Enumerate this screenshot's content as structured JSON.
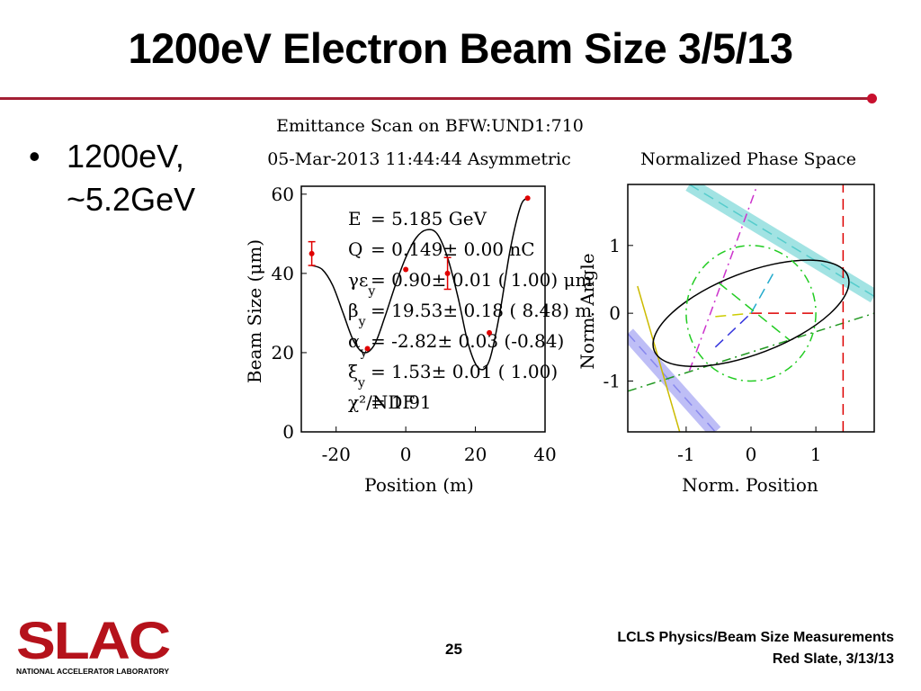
{
  "slide": {
    "title": "1200eV Electron Beam Size 3/5/13",
    "bullet_marker": "•",
    "bullet_line1": "1200eV,",
    "bullet_line2": "~5.2GeV",
    "accent_color": "#a31f34"
  },
  "footer": {
    "page_number": "25",
    "line1": "LCLS Physics/Beam Size Measurements",
    "line2": "Red Slate, 3/13/13",
    "logo_text": "SLAC",
    "logo_subtitle": "NATIONAL ACCELERATOR LABORATORY"
  },
  "chart_data": [
    {
      "type": "scatter",
      "title": "Emittance Scan on BFW:UND1:710",
      "subtitle": "05-Mar-2013 11:44:44 Asymmetric",
      "xlabel": "Position  (m)",
      "ylabel": "Beam Size  (μm)",
      "xlim": [
        -30,
        40
      ],
      "ylim": [
        0,
        62
      ],
      "xticks": [
        -20,
        0,
        20,
        40
      ],
      "yticks": [
        0,
        20,
        40,
        60
      ],
      "points": [
        {
          "x": -27,
          "y": 45,
          "err": 3
        },
        {
          "x": -11,
          "y": 21,
          "err": 0
        },
        {
          "x": 0,
          "y": 41,
          "err": 0
        },
        {
          "x": 12,
          "y": 40,
          "err": 4
        },
        {
          "x": 24,
          "y": 25,
          "err": 0
        },
        {
          "x": 35,
          "y": 59,
          "err": 0
        }
      ],
      "fit": {
        "x": [
          -27,
          -24,
          -21,
          -18,
          -15,
          -12,
          -9,
          -6,
          -3,
          0,
          3,
          6,
          9,
          12,
          15,
          18,
          21,
          24,
          27,
          30,
          33,
          35
        ],
        "y": [
          42,
          41,
          37,
          30,
          23,
          20,
          22,
          29,
          37,
          44,
          49,
          51,
          50,
          44,
          34,
          22,
          16,
          18,
          30,
          46,
          57,
          59
        ]
      },
      "annotations": [
        {
          "label": "E",
          "value": "=  5.185 GeV"
        },
        {
          "label": "Q",
          "value": "=  0.149± 0.00 nC"
        },
        {
          "label": "γε",
          "sub": "y",
          "value": "=  0.90± 0.01 ( 1.00) μm"
        },
        {
          "label": "β",
          "sub": "y",
          "value": "=  19.53± 0.18 ( 8.48) m"
        },
        {
          "label": "α",
          "sub": "y",
          "value": "=  -2.82± 0.03 (-0.84)"
        },
        {
          "label": "ξ",
          "sub": "y",
          "value": "=  1.53± 0.01 ( 1.00)"
        },
        {
          "label": "χ²/NDF",
          "sub": "",
          "value": "=  1.91"
        }
      ],
      "colors": {
        "data": "#e00000",
        "fit": "#000000"
      }
    },
    {
      "type": "line",
      "title": "Normalized Phase Space",
      "xlabel": "Norm. Position",
      "ylabel": "Norm. Angle",
      "xlim": [
        -1.9,
        1.9
      ],
      "ylim": [
        -1.75,
        1.9
      ],
      "xticks": [
        -1,
        0,
        1
      ],
      "yticks": [
        -1,
        0,
        1
      ],
      "ellipses": [
        {
          "name": "measured",
          "cx": 0,
          "cy": 0,
          "rx": 1.6,
          "ry": 0.6,
          "angle_deg": 21,
          "color": "#000000",
          "dash": "solid"
        },
        {
          "name": "design",
          "cx": 0,
          "cy": 0,
          "rx": 1.0,
          "ry": 1.0,
          "angle_deg": 0,
          "color": "#22cc22",
          "dash": "dashdot"
        }
      ],
      "lines": [
        {
          "x": [
            -0.95,
            1.9
          ],
          "y": [
            1.9,
            0.25
          ],
          "color": "#55cccc",
          "dash": "dashed",
          "band": true
        },
        {
          "x": [
            -1.9,
            -0.55
          ],
          "y": [
            -0.3,
            -1.75
          ],
          "color": "#8888ee",
          "dash": "dashed",
          "band": true
        },
        {
          "x": [
            -1.9,
            1.9
          ],
          "y": [
            -1.15,
            0.0
          ],
          "color": "#229922",
          "dash": "dashdot"
        },
        {
          "x": [
            -1.75,
            -1.1
          ],
          "y": [
            0.4,
            -1.75
          ],
          "color": "#ccbb00",
          "dash": "solid"
        },
        {
          "x": [
            -0.95,
            0.1
          ],
          "y": [
            -0.85,
            1.9
          ],
          "color": "#cc33cc",
          "dash": "dashdot"
        },
        {
          "x": [
            1.42,
            1.42
          ],
          "y": [
            -1.75,
            1.9
          ],
          "color": "#dd0000",
          "dash": "dashed"
        },
        {
          "x": [
            0,
            1.0
          ],
          "y": [
            0,
            0
          ],
          "color": "#dd0000",
          "dash": "dashed"
        },
        {
          "x": [
            -0.55,
            0
          ],
          "y": [
            -0.5,
            0
          ],
          "color": "#3333dd",
          "dash": "dashed"
        },
        {
          "x": [
            0,
            0.35
          ],
          "y": [
            0,
            0.6
          ],
          "color": "#22aacc",
          "dash": "dashed"
        },
        {
          "x": [
            -0.55,
            0
          ],
          "y": [
            -0.05,
            0
          ],
          "color": "#cccc00",
          "dash": "dashed"
        },
        {
          "x": [
            -0.5,
            0.6
          ],
          "y": [
            0.45,
            -0.4
          ],
          "color": "#22cc22",
          "dash": "dashed"
        }
      ]
    }
  ]
}
